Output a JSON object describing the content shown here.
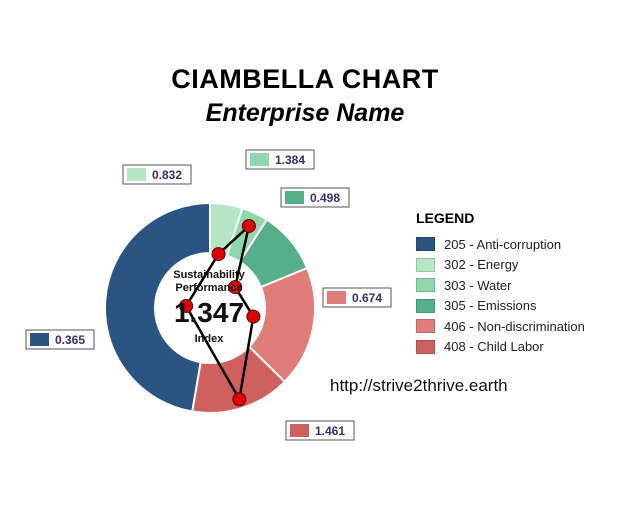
{
  "title": "CIAMBELLA CHART",
  "subtitle": "Enterprise Name",
  "url": "http://strive2thrive.earth",
  "center": {
    "label": "Sustainability Performance",
    "value": "1.347",
    "sub": "Index"
  },
  "legend": {
    "title": "LEGEND",
    "items": [
      {
        "label": "205 - Anti-corruption",
        "color": "#2a5583"
      },
      {
        "label": "302 - Energy",
        "color": "#b6e6c6"
      },
      {
        "label": "303 - Water",
        "color": "#8fd8ab"
      },
      {
        "label": "305 - Emissions",
        "color": "#55b08a"
      },
      {
        "label": "406 - Non-discrimination",
        "color": "#e07c79"
      },
      {
        "label": "408 - Child Labor",
        "color": "#d0605e"
      }
    ]
  },
  "chart_data": {
    "type": "pie",
    "categories": [
      "205 - Anti-corruption",
      "302 - Energy",
      "303 - Water",
      "305 - Emissions",
      "406 - Non-discrimination",
      "408 - Child Labor"
    ],
    "shares": [
      0.473,
      0.05,
      0.041,
      0.097,
      0.186,
      0.153
    ],
    "values": [
      0.365,
      0.832,
      1.384,
      0.498,
      0.674,
      1.461
    ],
    "colors": [
      "#2a5583",
      "#b6e6c6",
      "#8fd8ab",
      "#55b08a",
      "#e07c79",
      "#d0605e"
    ],
    "start_share": 0.527,
    "radial_max": 1.6
  }
}
